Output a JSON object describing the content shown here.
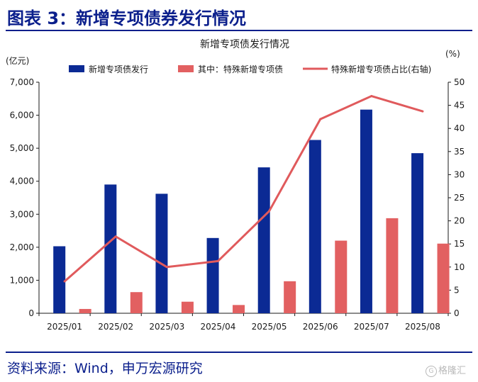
{
  "figure_title": "图表 3：新增专项债券发行情况",
  "source": "资料来源：Wind，申万宏源研究",
  "watermark": "格隆汇",
  "colors": {
    "blue": "#0b2a94",
    "red": "#e26061",
    "line": "#e05a5c",
    "title": "#0b1f8c"
  },
  "chart_data": {
    "type": "bar",
    "title": "新增专项债发行情况",
    "left_unit": "(亿元)",
    "right_unit": "(%)",
    "categories": [
      "2025/01",
      "2025/02",
      "2025/03",
      "2025/04",
      "2025/05",
      "2025/06",
      "2025/07",
      "2025/08"
    ],
    "ylim_left": [
      0,
      7000
    ],
    "ylim_right": [
      0,
      50
    ],
    "yticks_left": [
      "0",
      "1,000",
      "2,000",
      "3,000",
      "4,000",
      "5,000",
      "6,000",
      "7,000"
    ],
    "yticks_right": [
      "0",
      "5",
      "10",
      "15",
      "20",
      "25",
      "30",
      "35",
      "40",
      "45",
      "50"
    ],
    "legend_position": "top",
    "series": [
      {
        "name": "新增专项债发行",
        "type": "bar",
        "axis": "left",
        "color": "#0b2a94",
        "values": [
          2030,
          3900,
          3620,
          2280,
          4420,
          5250,
          6170,
          4850
        ]
      },
      {
        "name": "其中：特殊新增专项债",
        "type": "bar",
        "axis": "left",
        "color": "#e26061",
        "values": [
          130,
          640,
          350,
          250,
          970,
          2200,
          2880,
          2110
        ]
      },
      {
        "name": "特殊新增专项债占比(右轴)",
        "type": "line",
        "axis": "right",
        "color": "#e05a5c",
        "values": [
          6.9,
          16.6,
          10.0,
          11.3,
          22.1,
          42.0,
          47.0,
          43.7
        ]
      }
    ]
  }
}
